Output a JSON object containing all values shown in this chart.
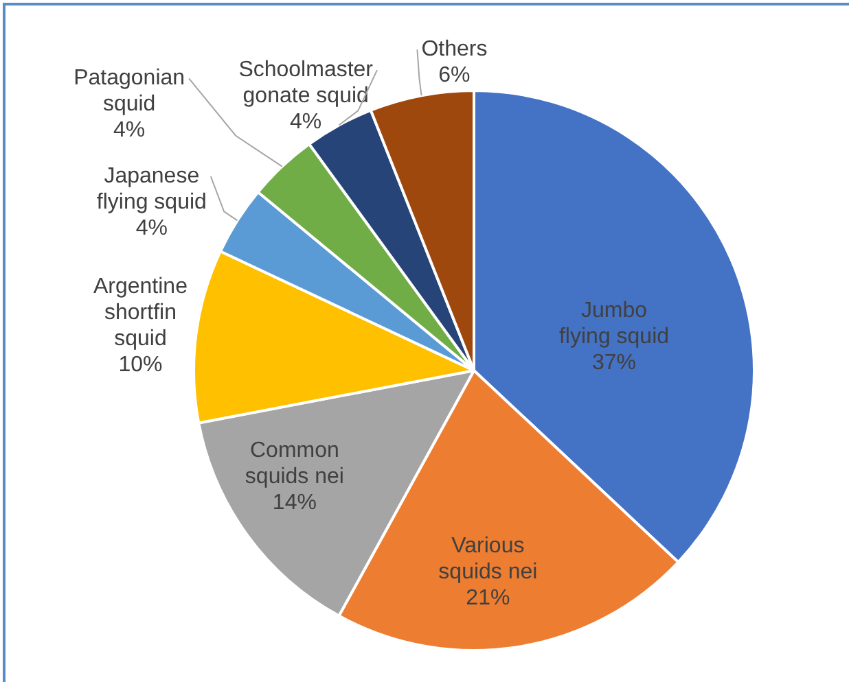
{
  "chart_data": {
    "type": "pie",
    "categories": [
      "Jumbo flying squid",
      "Various squids nei",
      "Common squids nei",
      "Argentine shortfin squid",
      "Japanese flying squid",
      "Patagonian squid",
      "Schoolmaster gonate squid",
      "Others"
    ],
    "values": [
      37,
      21,
      14,
      10,
      4,
      4,
      4,
      6
    ],
    "colors": [
      "#4472c4",
      "#ed7d31",
      "#a5a5a5",
      "#ffc000",
      "#5b9bd5",
      "#70ad47",
      "#264478",
      "#9e480e"
    ],
    "value_labels": [
      "37%",
      "21%",
      "14%",
      "10%",
      "4%",
      "4%",
      "4%",
      "6%"
    ],
    "legend": false
  }
}
